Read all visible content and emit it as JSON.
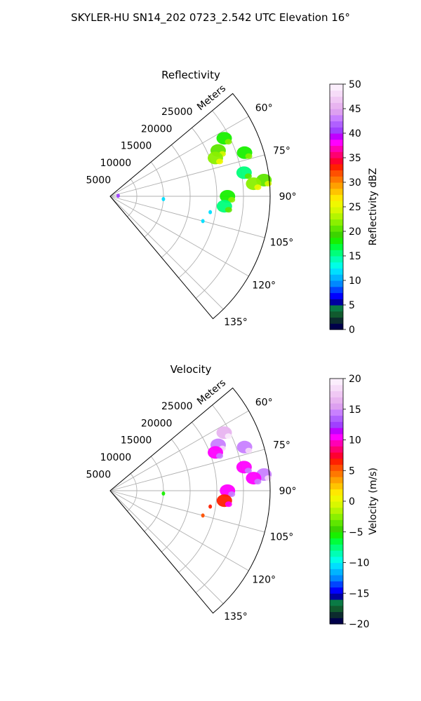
{
  "title": "SKYLER-HU  SN14_202  0723_2.542 UTC Elevation 16°",
  "chart_data": [
    {
      "type": "heatmap",
      "projection": "polar-sector",
      "title": "Reflectivity",
      "radial_label": "Meters",
      "radial_ticks": [
        5000,
        10000,
        15000,
        20000,
        25000
      ],
      "radial_tick_labels": [
        "5000",
        "10000",
        "15000",
        "20000",
        "25000"
      ],
      "rlim": [
        0,
        30000
      ],
      "angle_range_deg": [
        50,
        140
      ],
      "angle_ticks": [
        60,
        75,
        90,
        105,
        120,
        135
      ],
      "angle_tick_labels": [
        "60°",
        "75°",
        "90°",
        "105°",
        "120°",
        "135°"
      ],
      "grid": true,
      "colorbar": {
        "label": "Reflectivity dBZ",
        "range": [
          0,
          50
        ],
        "ticks": [
          0,
          5,
          10,
          15,
          20,
          25,
          30,
          35,
          40,
          45,
          50
        ],
        "tick_labels": [
          "0",
          "5",
          "10",
          "15",
          "20",
          "25",
          "30",
          "35",
          "40",
          "45",
          "50"
        ],
        "colors": [
          "#00004a",
          "#0c2b2e",
          "#115a2e",
          "#0a7a45",
          "#0000a0",
          "#0000ff",
          "#0044ff",
          "#0088ff",
          "#00b4ff",
          "#00dfff",
          "#00ffe6",
          "#00ffb4",
          "#00ff7a",
          "#00ff3c",
          "#18f000",
          "#3cd400",
          "#5ee600",
          "#8af000",
          "#b4f500",
          "#d8f800",
          "#f0f800",
          "#ffe800",
          "#ffc400",
          "#ffa000",
          "#ff7800",
          "#ff5000",
          "#ff2000",
          "#ff0030",
          "#ff0070",
          "#ff00b4",
          "#ff00ff",
          "#c000ff",
          "#a040ff",
          "#b060ff",
          "#c880ff",
          "#dda0f0",
          "#e8b4f0",
          "#f0c8f4",
          "#f6dcf8",
          "#fbeefc"
        ]
      },
      "echo_cells": [
        {
          "range_m": 22000,
          "azimuth_deg": 67,
          "level": 20
        },
        {
          "range_m": 21000,
          "azimuth_deg": 70,
          "level": 22
        },
        {
          "range_m": 24000,
          "azimuth_deg": 63,
          "level": 18
        },
        {
          "range_m": 26500,
          "azimuth_deg": 72,
          "level": 18
        },
        {
          "range_m": 25500,
          "azimuth_deg": 80,
          "level": 16
        },
        {
          "range_m": 29000,
          "azimuth_deg": 84,
          "level": 20
        },
        {
          "range_m": 27000,
          "azimuth_deg": 85,
          "level": 22
        },
        {
          "range_m": 22000,
          "azimuth_deg": 90,
          "level": 18
        },
        {
          "range_m": 21500,
          "azimuth_deg": 95,
          "level": 16
        },
        {
          "range_m": 10000,
          "azimuth_deg": 93,
          "level": 12
        },
        {
          "range_m": 19000,
          "azimuth_deg": 99,
          "level": 12
        },
        {
          "range_m": 18000,
          "azimuth_deg": 105,
          "level": 12
        },
        {
          "range_m": 1500,
          "azimuth_deg": 86,
          "level": 40
        }
      ]
    },
    {
      "type": "heatmap",
      "projection": "polar-sector",
      "title": "Velocity",
      "radial_label": "Meters",
      "radial_ticks": [
        5000,
        10000,
        15000,
        20000,
        25000
      ],
      "radial_tick_labels": [
        "5000",
        "10000",
        "15000",
        "20000",
        "25000"
      ],
      "rlim": [
        0,
        30000
      ],
      "angle_range_deg": [
        50,
        140
      ],
      "angle_ticks": [
        60,
        75,
        90,
        105,
        120,
        135
      ],
      "angle_tick_labels": [
        "60°",
        "75°",
        "90°",
        "105°",
        "120°",
        "135°"
      ],
      "grid": true,
      "colorbar": {
        "label": "Velocity (m/s)",
        "range": [
          -20,
          20
        ],
        "ticks": [
          -20,
          -15,
          -10,
          -5,
          0,
          5,
          10,
          15,
          20
        ],
        "tick_labels": [
          "−20",
          "−15",
          "−10",
          "−5",
          "0",
          "5",
          "10",
          "15",
          "20"
        ],
        "colors": [
          "#00004a",
          "#0c2b2e",
          "#115a2e",
          "#0a7a45",
          "#0000a0",
          "#0000ff",
          "#0044ff",
          "#0088ff",
          "#00b4ff",
          "#00dfff",
          "#00ffe6",
          "#00ffb4",
          "#00ff7a",
          "#00ff3c",
          "#18f000",
          "#3cd400",
          "#5ee600",
          "#8af000",
          "#b4f500",
          "#d8f800",
          "#f0f800",
          "#ffe800",
          "#ffc400",
          "#ffa000",
          "#ff7800",
          "#ff5000",
          "#ff2000",
          "#ff0030",
          "#ff0070",
          "#ff00b4",
          "#ff00ff",
          "#c000ff",
          "#a040ff",
          "#b060ff",
          "#c880ff",
          "#dda0f0",
          "#e8b4f0",
          "#f0c8f4",
          "#f6dcf8",
          "#fbeefc"
        ]
      },
      "echo_cells": [
        {
          "range_m": 22000,
          "azimuth_deg": 67,
          "level": 14
        },
        {
          "range_m": 21000,
          "azimuth_deg": 70,
          "level": 10
        },
        {
          "range_m": 24000,
          "azimuth_deg": 63,
          "level": 16
        },
        {
          "range_m": 26500,
          "azimuth_deg": 72,
          "level": 14
        },
        {
          "range_m": 25500,
          "azimuth_deg": 80,
          "level": 10
        },
        {
          "range_m": 29000,
          "azimuth_deg": 84,
          "level": 14
        },
        {
          "range_m": 27000,
          "azimuth_deg": 85,
          "level": 10
        },
        {
          "range_m": 22000,
          "azimuth_deg": 90,
          "level": 10
        },
        {
          "range_m": 21500,
          "azimuth_deg": 95,
          "level": 6
        },
        {
          "range_m": 10000,
          "azimuth_deg": 93,
          "level": -6
        },
        {
          "range_m": 19000,
          "azimuth_deg": 99,
          "level": 6
        },
        {
          "range_m": 18000,
          "azimuth_deg": 105,
          "level": 5
        }
      ]
    }
  ]
}
